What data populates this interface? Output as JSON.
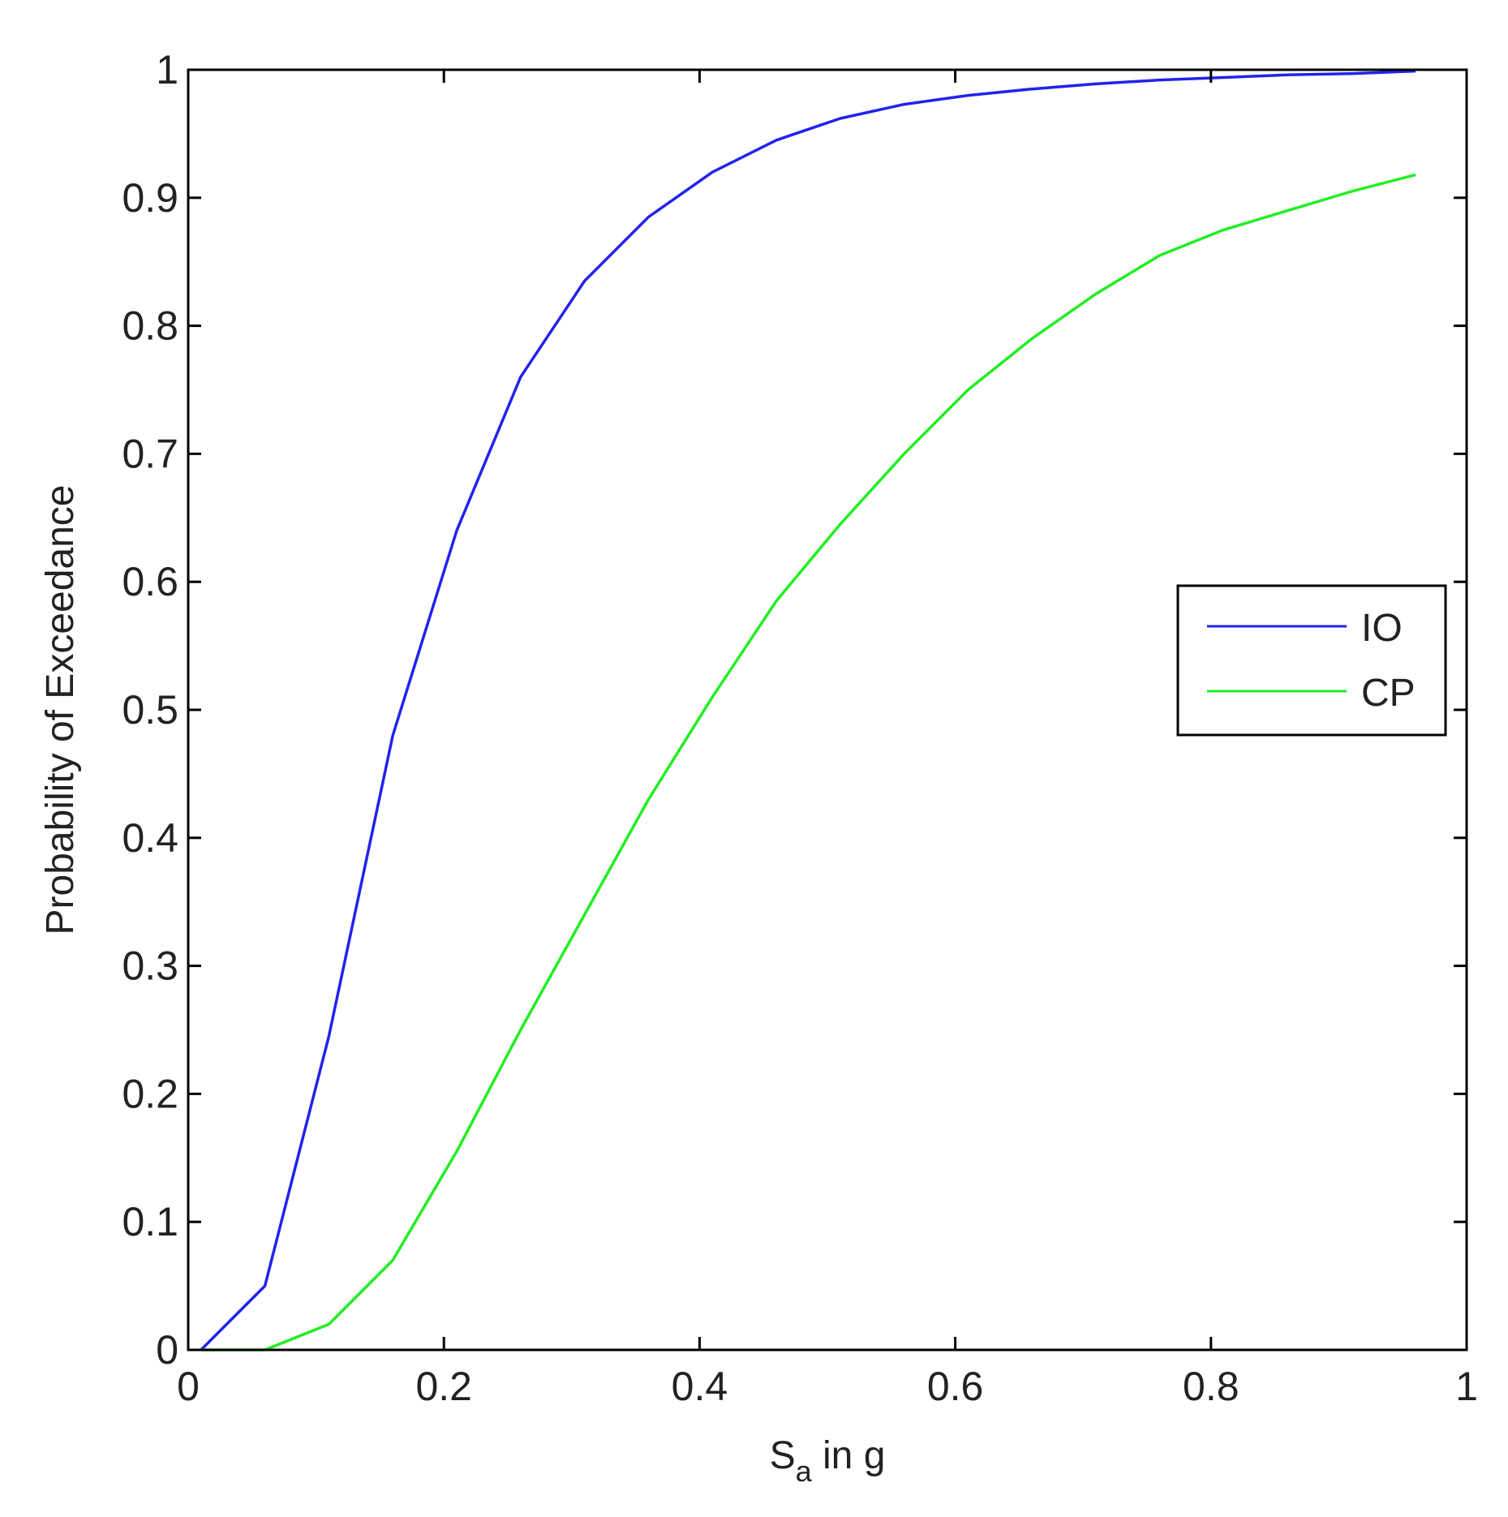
{
  "chart_data": {
    "type": "line",
    "xlabel": {
      "main": "S",
      "sub": "a",
      "rest": " in g"
    },
    "ylabel": "Probability of Exceedance",
    "xlim": [
      0,
      1
    ],
    "ylim": [
      0,
      1
    ],
    "xticks": [
      0,
      0.2,
      0.4,
      0.6,
      0.8,
      1
    ],
    "xtick_labels": [
      "0",
      "0.2",
      "0.4",
      "0.6",
      "0.8",
      "1"
    ],
    "yticks": [
      0,
      0.1,
      0.2,
      0.3,
      0.4,
      0.5,
      0.6,
      0.7,
      0.8,
      0.9,
      1
    ],
    "ytick_labels": [
      "0",
      "0.1",
      "0.2",
      "0.3",
      "0.4",
      "0.5",
      "0.6",
      "0.7",
      "0.8",
      "0.9",
      "1"
    ],
    "grid": false,
    "legend_position": "right",
    "series": [
      {
        "name": "IO",
        "color": "#2222ee",
        "x": [
          0.01,
          0.06,
          0.11,
          0.16,
          0.21,
          0.26,
          0.31,
          0.36,
          0.41,
          0.46,
          0.51,
          0.56,
          0.61,
          0.66,
          0.71,
          0.76,
          0.81,
          0.86,
          0.91,
          0.96
        ],
        "y": [
          0.0,
          0.05,
          0.245,
          0.48,
          0.64,
          0.76,
          0.835,
          0.885,
          0.92,
          0.945,
          0.962,
          0.973,
          0.98,
          0.985,
          0.989,
          0.992,
          0.994,
          0.996,
          0.997,
          0.999
        ]
      },
      {
        "name": "CP",
        "color": "#22ee22",
        "x": [
          0.01,
          0.06,
          0.11,
          0.16,
          0.21,
          0.26,
          0.31,
          0.36,
          0.41,
          0.46,
          0.51,
          0.56,
          0.61,
          0.66,
          0.71,
          0.76,
          0.81,
          0.86,
          0.91,
          0.96
        ],
        "y": [
          0.0,
          0.0,
          0.02,
          0.07,
          0.155,
          0.25,
          0.34,
          0.43,
          0.51,
          0.585,
          0.645,
          0.7,
          0.75,
          0.79,
          0.825,
          0.855,
          0.875,
          0.89,
          0.905,
          0.918
        ]
      }
    ]
  }
}
